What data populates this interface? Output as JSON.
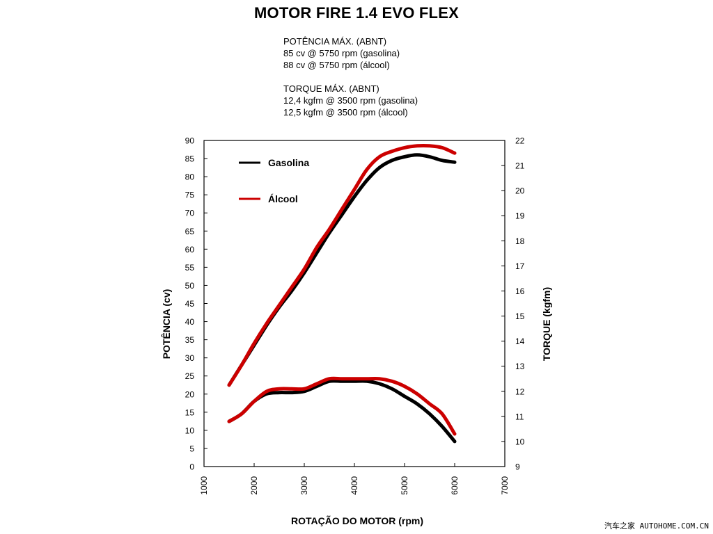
{
  "title": "MOTOR FIRE 1.4 EVO FLEX",
  "specs": {
    "power": {
      "heading": "POTÊNCIA MÁX. (ABNT)",
      "gasolina": "85 cv @ 5750 rpm (gasolina)",
      "alcool": "88 cv @ 5750 rpm (álcool)"
    },
    "torque": {
      "heading": "TORQUE MÁX. (ABNT)",
      "gasolina": "12,4 kgfm @ 3500 rpm (gasolina)",
      "alcool": "12,5 kgfm @ 3500 rpm (álcool)"
    }
  },
  "watermark": "汽车之家 AUTOHOME.COM.CN",
  "colors": {
    "gasolina": "#000000",
    "alcool": "#cc0000"
  },
  "chart_data": {
    "type": "line",
    "title": "MOTOR FIRE 1.4 EVO FLEX",
    "xlabel": "ROTAÇÃO DO MOTOR (rpm)",
    "ylabel_left": "POTÊNCIA (cv)",
    "ylabel_right": "TORQUE (kgfm)",
    "xlim": [
      1000,
      7000
    ],
    "xticks": [
      1000,
      2000,
      3000,
      4000,
      5000,
      6000,
      7000
    ],
    "ylim_left": [
      0,
      90
    ],
    "yticks_left": [
      0,
      5,
      10,
      15,
      20,
      25,
      30,
      35,
      40,
      45,
      50,
      55,
      60,
      65,
      70,
      75,
      80,
      85,
      90
    ],
    "ylim_right": [
      9,
      22
    ],
    "yticks_right": [
      9,
      10,
      11,
      12,
      13,
      14,
      15,
      16,
      17,
      18,
      19,
      20,
      21,
      22
    ],
    "grid": false,
    "legend_position": "top-left",
    "legend": [
      "Gasolina",
      "Álcool"
    ],
    "x": [
      1500,
      1750,
      2000,
      2250,
      2500,
      2750,
      3000,
      3250,
      3500,
      3750,
      4000,
      4250,
      4500,
      4750,
      5000,
      5250,
      5500,
      5750,
      6000
    ],
    "series": [
      {
        "name": "Gasolina",
        "quantity": "power",
        "axis": "left",
        "color": "#000000",
        "values": [
          22.5,
          28,
          33.5,
          39,
          44,
          48.5,
          53.5,
          59,
          64.5,
          69.5,
          74.5,
          79,
          82.5,
          84.5,
          85.5,
          86,
          85.5,
          84.5,
          84
        ]
      },
      {
        "name": "Álcool",
        "quantity": "power",
        "axis": "left",
        "color": "#cc0000",
        "values": [
          22.5,
          28,
          34,
          39.5,
          44.5,
          49.5,
          54.5,
          60.5,
          65.5,
          71,
          76.5,
          82,
          85.5,
          87,
          88,
          88.5,
          88.5,
          88,
          86.5
        ]
      },
      {
        "name": "Gasolina",
        "quantity": "torque",
        "axis": "right",
        "color": "#000000",
        "values": [
          10.8,
          11.1,
          11.6,
          11.9,
          11.95,
          11.95,
          12.0,
          12.2,
          12.4,
          12.4,
          12.4,
          12.4,
          12.3,
          12.1,
          11.8,
          11.5,
          11.1,
          10.6,
          10.0
        ]
      },
      {
        "name": "Álcool",
        "quantity": "torque",
        "axis": "right",
        "color": "#cc0000",
        "values": [
          10.8,
          11.1,
          11.6,
          12.0,
          12.1,
          12.1,
          12.1,
          12.3,
          12.5,
          12.5,
          12.5,
          12.5,
          12.5,
          12.4,
          12.2,
          11.9,
          11.5,
          11.1,
          10.3
        ]
      }
    ]
  }
}
